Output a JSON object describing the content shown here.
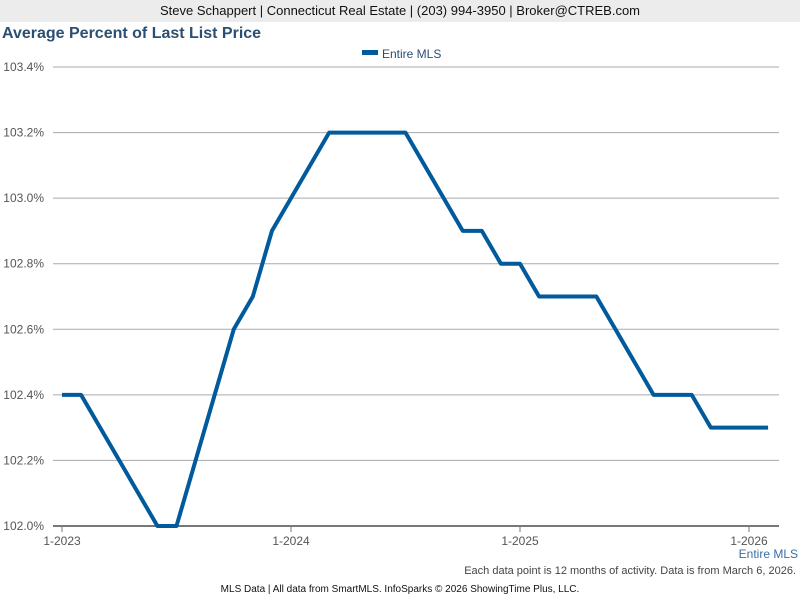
{
  "header": {
    "contact": "Steve Schappert | Connecticut Real Estate | (203) 994-3950 | Broker@CTREB.com"
  },
  "footer": {
    "note": "Each data point is 12 months of activity. Data is from March 6, 2026.",
    "credit": "MLS Data | All data from SmartMLS. InfoSparks © 2026 ShowingTime Plus, LLC."
  },
  "chart_data": {
    "type": "line",
    "title": "Average Percent of Last List Price",
    "xlabel": "",
    "ylabel": "",
    "ylim": [
      102.0,
      103.4
    ],
    "yticks": [
      "102.0%",
      "102.2%",
      "102.4%",
      "102.6%",
      "102.8%",
      "103.0%",
      "103.2%",
      "103.4%"
    ],
    "xticks": [
      "1-2023",
      "1-2024",
      "1-2025",
      "1-2026"
    ],
    "legend": "top-center",
    "end_label": "Entire MLS",
    "color": "#005a9c",
    "x": [
      "1-2023",
      "2-2023",
      "3-2023",
      "4-2023",
      "5-2023",
      "6-2023",
      "7-2023",
      "8-2023",
      "9-2023",
      "10-2023",
      "11-2023",
      "12-2023",
      "1-2024",
      "2-2024",
      "3-2024",
      "4-2024",
      "5-2024",
      "6-2024",
      "7-2024",
      "8-2024",
      "9-2024",
      "10-2024",
      "11-2024",
      "12-2024",
      "1-2025",
      "2-2025",
      "3-2025",
      "4-2025",
      "5-2025",
      "6-2025",
      "7-2025",
      "8-2025",
      "9-2025",
      "10-2025",
      "11-2025",
      "12-2025",
      "1-2026",
      "2-2026"
    ],
    "series": [
      {
        "name": "Entire MLS",
        "values": [
          102.4,
          102.4,
          102.3,
          102.2,
          102.1,
          102.0,
          102.0,
          102.2,
          102.4,
          102.6,
          102.7,
          102.9,
          103.0,
          103.1,
          103.2,
          103.2,
          103.2,
          103.2,
          103.2,
          103.1,
          103.0,
          102.9,
          102.9,
          102.8,
          102.8,
          102.7,
          102.7,
          102.7,
          102.7,
          102.6,
          102.5,
          102.4,
          102.4,
          102.4,
          102.3,
          102.3,
          102.3,
          102.3
        ]
      }
    ]
  }
}
